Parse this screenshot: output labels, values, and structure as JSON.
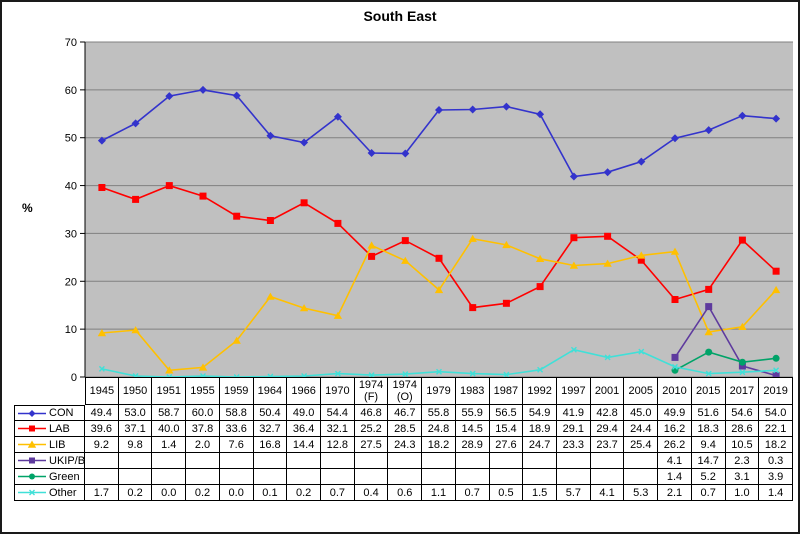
{
  "chart_data": {
    "type": "line",
    "title": "South East",
    "ylabel": "%",
    "ylim": [
      0,
      70
    ],
    "ytick_step": 10,
    "grid": "horizontal",
    "legend_position": "table-left",
    "plot_bg_color": "#C0C0C0",
    "gridline_color": "#808080",
    "categories": [
      "1945",
      "1950",
      "1951",
      "1955",
      "1959",
      "1964",
      "1966",
      "1970",
      "1974 (F)",
      "1974 (O)",
      "1979",
      "1983",
      "1987",
      "1992",
      "1997",
      "2001",
      "2005",
      "2010",
      "2015",
      "2017",
      "2019"
    ],
    "series": [
      {
        "name": "CON",
        "color": "#3333CC",
        "marker": "diamond",
        "values": [
          49.4,
          53.0,
          58.7,
          60.0,
          58.8,
          50.4,
          49.0,
          54.4,
          46.8,
          46.7,
          55.8,
          55.9,
          56.5,
          54.9,
          41.9,
          42.8,
          45.0,
          49.9,
          51.6,
          54.6,
          54.0
        ]
      },
      {
        "name": "LAB",
        "color": "#FF0000",
        "marker": "square",
        "values": [
          39.6,
          37.1,
          40.0,
          37.8,
          33.6,
          32.7,
          36.4,
          32.1,
          25.2,
          28.5,
          24.8,
          14.5,
          15.4,
          18.9,
          29.1,
          29.4,
          24.4,
          16.2,
          18.3,
          28.6,
          22.1
        ]
      },
      {
        "name": "LIB",
        "color": "#FFC000",
        "marker": "triangle",
        "values": [
          9.2,
          9.8,
          1.4,
          2.0,
          7.6,
          16.8,
          14.4,
          12.8,
          27.5,
          24.3,
          18.2,
          28.9,
          27.6,
          24.7,
          23.3,
          23.7,
          25.4,
          26.2,
          9.4,
          10.5,
          18.2
        ]
      },
      {
        "name": "UKIP/Br",
        "color": "#5E3A9E",
        "marker": "square",
        "values": [
          null,
          null,
          null,
          null,
          null,
          null,
          null,
          null,
          null,
          null,
          null,
          null,
          null,
          null,
          null,
          null,
          null,
          4.1,
          14.7,
          2.3,
          0.3
        ]
      },
      {
        "name": "Green",
        "color": "#00A368",
        "marker": "circle",
        "values": [
          null,
          null,
          null,
          null,
          null,
          null,
          null,
          null,
          null,
          null,
          null,
          null,
          null,
          null,
          null,
          null,
          null,
          1.4,
          5.2,
          3.1,
          3.9
        ]
      },
      {
        "name": "Other",
        "color": "#40E0D8",
        "marker": "x",
        "values": [
          1.7,
          0.2,
          0.0,
          0.2,
          0.0,
          0.1,
          0.2,
          0.7,
          0.4,
          0.6,
          1.1,
          0.7,
          0.5,
          1.5,
          5.7,
          4.1,
          5.3,
          2.1,
          0.7,
          1.0,
          1.4
        ]
      }
    ]
  }
}
